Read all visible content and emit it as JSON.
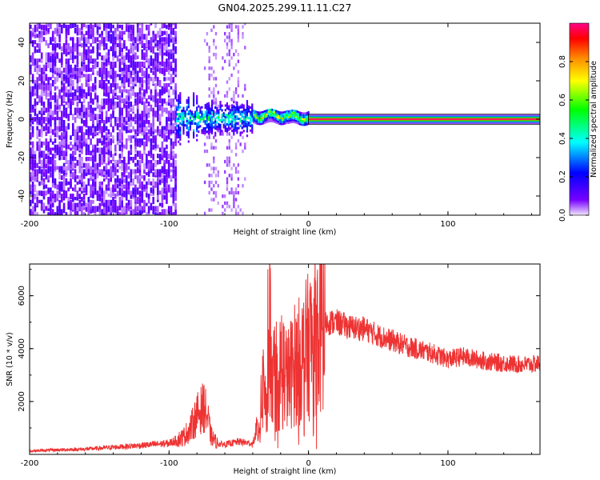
{
  "chart_data": [
    {
      "type": "heatmap",
      "title": "GN04.2025.299.11.11.C27",
      "xlabel": "Height of straight line (km)",
      "ylabel": "Frequency (Hz)",
      "xlim": [
        -200,
        166
      ],
      "ylim": [
        -50,
        50
      ],
      "xticks": [
        -200,
        -100,
        0,
        100
      ],
      "xtick_labels": [
        "-200",
        "-100",
        "0",
        "100"
      ],
      "yticks": [
        -40,
        -20,
        0,
        20,
        40
      ],
      "ytick_labels": [
        "-40",
        "-20",
        "0",
        "20",
        "40"
      ],
      "colorbar": {
        "label": "Normalized spectral amplitude",
        "range": [
          0,
          1
        ],
        "ticks": [
          0.0,
          0.2,
          0.4,
          0.6,
          0.8
        ],
        "tick_labels": [
          "0.0",
          "0.2",
          "0.4",
          "0.6",
          "0.8"
        ],
        "colors": [
          "#f2e6ff",
          "#7700ff",
          "#0000ff",
          "#00ffff",
          "#00ff00",
          "#ffff00",
          "#ff8800",
          "#ff0000",
          "#ff0088"
        ]
      },
      "regions": [
        {
          "x": [
            -200,
            -95
          ],
          "freq": [
            -50,
            50
          ],
          "amplitude": 0.08
        },
        {
          "x": [
            -95,
            -75
          ],
          "freq": [
            -50,
            50
          ],
          "amplitude": 0.0
        },
        {
          "x": [
            -75,
            -45
          ],
          "freq": [
            -50,
            50
          ],
          "amplitude": 0.04
        },
        {
          "x": [
            -95,
            -40
          ],
          "freq": [
            -15,
            15
          ],
          "amplitude": 0.3
        },
        {
          "x": [
            -40,
            0
          ],
          "freq": [
            -3,
            6
          ],
          "amplitude": 0.5
        },
        {
          "x": [
            0,
            166
          ],
          "freq": [
            -1,
            1
          ],
          "amplitude": 1.0
        }
      ],
      "grid": false
    },
    {
      "type": "line",
      "xlabel": "Height of straight line (km)",
      "ylabel": "SNR (10 * v/v)",
      "xlim": [
        -200,
        166
      ],
      "ylim": [
        0,
        7200
      ],
      "xticks": [
        -200,
        -100,
        0,
        100
      ],
      "xtick_labels": [
        "-200",
        "-100",
        "0",
        "100"
      ],
      "yticks": [
        2000,
        4000,
        6000
      ],
      "ytick_labels": [
        "2000",
        "4000",
        "6000"
      ],
      "color": "#ee3333",
      "series": [
        {
          "x": [
            -200,
            -180,
            -160,
            -140,
            -120,
            -100,
            -90,
            -85,
            -80,
            -75,
            -72,
            -70,
            -65,
            -60,
            -50,
            -40,
            -35,
            -32,
            -30,
            -28,
            -26,
            -24,
            -22,
            -20,
            -15,
            -10,
            -5,
            0,
            5,
            10,
            15,
            20,
            25,
            30,
            40,
            50,
            60,
            70,
            80,
            90,
            100,
            110,
            120,
            130,
            140,
            150,
            160,
            166
          ],
          "y": [
            130,
            170,
            200,
            270,
            340,
            420,
            650,
            950,
            1500,
            1800,
            1300,
            700,
            400,
            380,
            480,
            400,
            1200,
            3000,
            1200,
            5200,
            2000,
            4000,
            2200,
            3600,
            2800,
            3400,
            3600,
            4100,
            4600,
            4900,
            5000,
            5000,
            4900,
            4800,
            4750,
            4500,
            4300,
            4100,
            3950,
            3800,
            3600,
            3700,
            3600,
            3500,
            3450,
            3400,
            3400,
            3450
          ]
        }
      ],
      "grid": false
    }
  ]
}
